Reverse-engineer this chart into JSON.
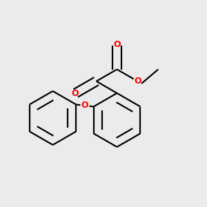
{
  "background_color": "#ebebeb",
  "bond_color": "#000000",
  "oxygen_color": "#ff0000",
  "line_width": 1.6,
  "dbo": 0.018,
  "figsize": [
    3.0,
    3.0
  ],
  "dpi": 100,
  "xlim": [
    0,
    1
  ],
  "ylim": [
    0,
    1
  ]
}
